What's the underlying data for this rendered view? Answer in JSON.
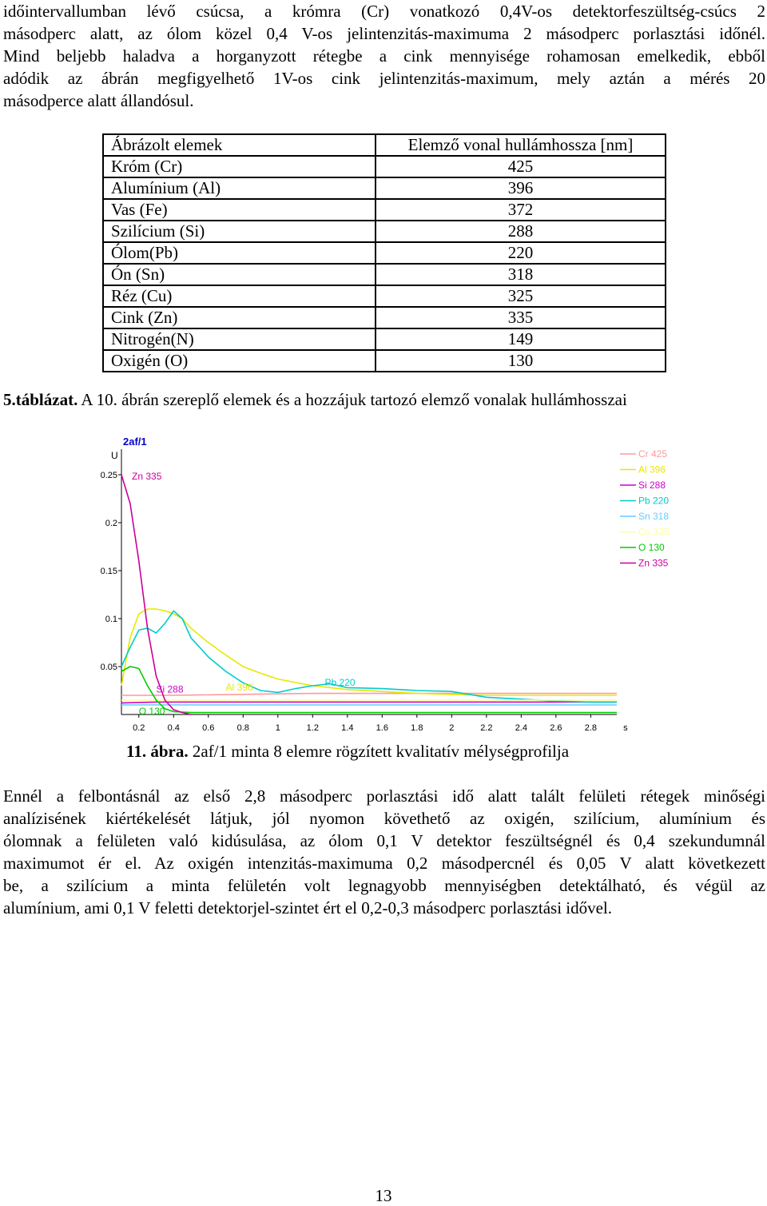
{
  "paragraph1": [
    "időintervallumban lévő csúcsa, a krómra (Cr) vonatkozó 0,4V-os detektorfeszültség-csúcs 2",
    "másodperc alatt, az ólom közel 0,4 V-os jelintenzitás-maximuma 2 másodperc porlasztási időnél.",
    "Mind beljebb haladva a horganyzott rétegbe a cink mennyisége rohamosan emelkedik, ebből",
    "adódik az ábrán megfigyelhető 1V-os cink jelintenzitás-maximum, mely aztán a mérés 20",
    "másodperce alatt állandósul."
  ],
  "table": {
    "headers": [
      "Ábrázolt elemek",
      "Elemző vonal hullámhossza [nm]"
    ],
    "rows": [
      [
        "Króm (Cr)",
        "425"
      ],
      [
        "Alumínium (Al)",
        "396"
      ],
      [
        "Vas (Fe)",
        "372"
      ],
      [
        "Szilícium (Si)",
        "288"
      ],
      [
        "Ólom(Pb)",
        "220"
      ],
      [
        "Ón (Sn)",
        "318"
      ],
      [
        "Réz (Cu)",
        "325"
      ],
      [
        "Cink (Zn)",
        "335"
      ],
      [
        "Nitrogén(N)",
        "149"
      ],
      [
        "Oxigén (O)",
        "130"
      ]
    ],
    "caption_label": "5.táblázat.",
    "caption_text": " A 10. ábrán szereplő elemek és a hozzájuk tartozó elemző vonalak hullámhosszai"
  },
  "chart_data": {
    "type": "line",
    "title": "2af/1",
    "ylabel": "U",
    "xlabel": "s",
    "xlim": [
      0.1,
      2.95
    ],
    "ylim": [
      0,
      0.27
    ],
    "x_ticks": [
      "0.2",
      "0.4",
      "0.6",
      "0.8",
      "1",
      "1.2",
      "1.4",
      "1.6",
      "1.8",
      "2",
      "2.2",
      "2.4",
      "2.6",
      "2.8",
      "s"
    ],
    "y_ticks": [
      "0.05",
      "0.1",
      "0.15",
      "0.2",
      "0.25"
    ],
    "grid": false,
    "legend_position": "top-right",
    "legend": [
      "Cr 425",
      "Al 396",
      "Si 288",
      "Pb 220",
      "Sn 318",
      "Cu 325",
      "O 130",
      "Zn 335"
    ],
    "annotations": [
      "Zn 335",
      "Si 288",
      "Al 396",
      "Pb 220",
      "O 130"
    ],
    "series": [
      {
        "name": "Cr 425",
        "color": "#ff9999",
        "x": [
          0.1,
          0.4,
          0.8,
          1.2,
          1.6,
          2.0,
          2.4,
          2.8,
          2.95
        ],
        "y": [
          0.02,
          0.02,
          0.021,
          0.022,
          0.022,
          0.022,
          0.022,
          0.022,
          0.022
        ]
      },
      {
        "name": "Al 396",
        "color": "#e8e800",
        "x": [
          0.1,
          0.15,
          0.2,
          0.25,
          0.3,
          0.35,
          0.4,
          0.45,
          0.5,
          0.6,
          0.7,
          0.8,
          0.9,
          1.0,
          1.2,
          1.4,
          1.6,
          1.8,
          2.0,
          2.2,
          2.4,
          2.6,
          2.8,
          2.95
        ],
        "y": [
          0.03,
          0.08,
          0.105,
          0.11,
          0.11,
          0.108,
          0.105,
          0.1,
          0.09,
          0.075,
          0.062,
          0.05,
          0.043,
          0.037,
          0.03,
          0.026,
          0.024,
          0.022,
          0.021,
          0.02,
          0.02,
          0.02,
          0.02,
          0.02
        ]
      },
      {
        "name": "Si 288",
        "color": "#cc00cc",
        "x": [
          0.1,
          0.3,
          0.5,
          0.8,
          1.2,
          1.6,
          2.0,
          2.4,
          2.8,
          2.95
        ],
        "y": [
          0.012,
          0.013,
          0.013,
          0.013,
          0.013,
          0.013,
          0.013,
          0.013,
          0.013,
          0.013
        ]
      },
      {
        "name": "Pb 220",
        "color": "#00cccc",
        "x": [
          0.1,
          0.15,
          0.2,
          0.25,
          0.3,
          0.35,
          0.4,
          0.45,
          0.5,
          0.6,
          0.7,
          0.8,
          0.9,
          1.0,
          1.1,
          1.2,
          1.3,
          1.4,
          1.6,
          1.8,
          2.0,
          2.2,
          2.4,
          2.6,
          2.8,
          2.95
        ],
        "y": [
          0.05,
          0.07,
          0.088,
          0.09,
          0.085,
          0.095,
          0.108,
          0.1,
          0.08,
          0.06,
          0.045,
          0.033,
          0.025,
          0.023,
          0.027,
          0.03,
          0.032,
          0.028,
          0.027,
          0.025,
          0.024,
          0.018,
          0.016,
          0.014,
          0.013,
          0.013
        ]
      },
      {
        "name": "Sn 318",
        "color": "#66ccff",
        "x": [
          0.1,
          0.5,
          1.0,
          1.5,
          2.0,
          2.5,
          2.95
        ],
        "y": [
          0.01,
          0.01,
          0.01,
          0.01,
          0.01,
          0.01,
          0.01
        ]
      },
      {
        "name": "Cu 325",
        "color": "#ffff99",
        "x": [
          0.1,
          0.5,
          1.0,
          1.5,
          2.0,
          2.5,
          2.95
        ],
        "y": [
          0.015,
          0.015,
          0.015,
          0.015,
          0.015,
          0.015,
          0.015
        ]
      },
      {
        "name": "O 130",
        "color": "#00cc00",
        "x": [
          0.1,
          0.15,
          0.2,
          0.25,
          0.3,
          0.35,
          0.4,
          0.5,
          0.7,
          1.0,
          1.5,
          2.0,
          2.5,
          2.95
        ],
        "y": [
          0.045,
          0.05,
          0.048,
          0.03,
          0.015,
          0.006,
          0.003,
          0.002,
          0.002,
          0.002,
          0.002,
          0.002,
          0.002,
          0.002
        ]
      },
      {
        "name": "Zn 335",
        "color": "#cc0099",
        "x": [
          0.1,
          0.15,
          0.2,
          0.25,
          0.3,
          0.35,
          0.4,
          0.45,
          0.5
        ],
        "y": [
          0.25,
          0.22,
          0.16,
          0.09,
          0.04,
          0.015,
          0.005,
          0.002,
          0.0
        ]
      }
    ]
  },
  "figure_caption": {
    "label": "11. ábra.",
    "text": " 2af/1 minta 8 elemre rögzített kvalitatív mélységprofilja"
  },
  "paragraph2": [
    "Ennél a felbontásnál az első 2,8 másodperc porlasztási idő alatt talált felületi rétegek minőségi",
    "analízisének kiértékelését látjuk, jól nyomon követhető az oxigén, szilícium, alumínium és",
    "ólomnak a felületen való kidúsulása, az ólom 0,1 V detektor feszültségnél és 0,4 szekundumnál",
    "maximumot ér el. Az oxigén intenzitás-maximuma 0,2 másodpercnél és 0,05 V alatt következett",
    "be, a szilícium a minta felületén volt legnagyobb mennyiségben detektálható, és végül az",
    "alumínium, ami 0,1 V feletti detektorjel-szintet ért el 0,2-0,3 másodperc porlasztási idővel."
  ],
  "page_number": "13"
}
